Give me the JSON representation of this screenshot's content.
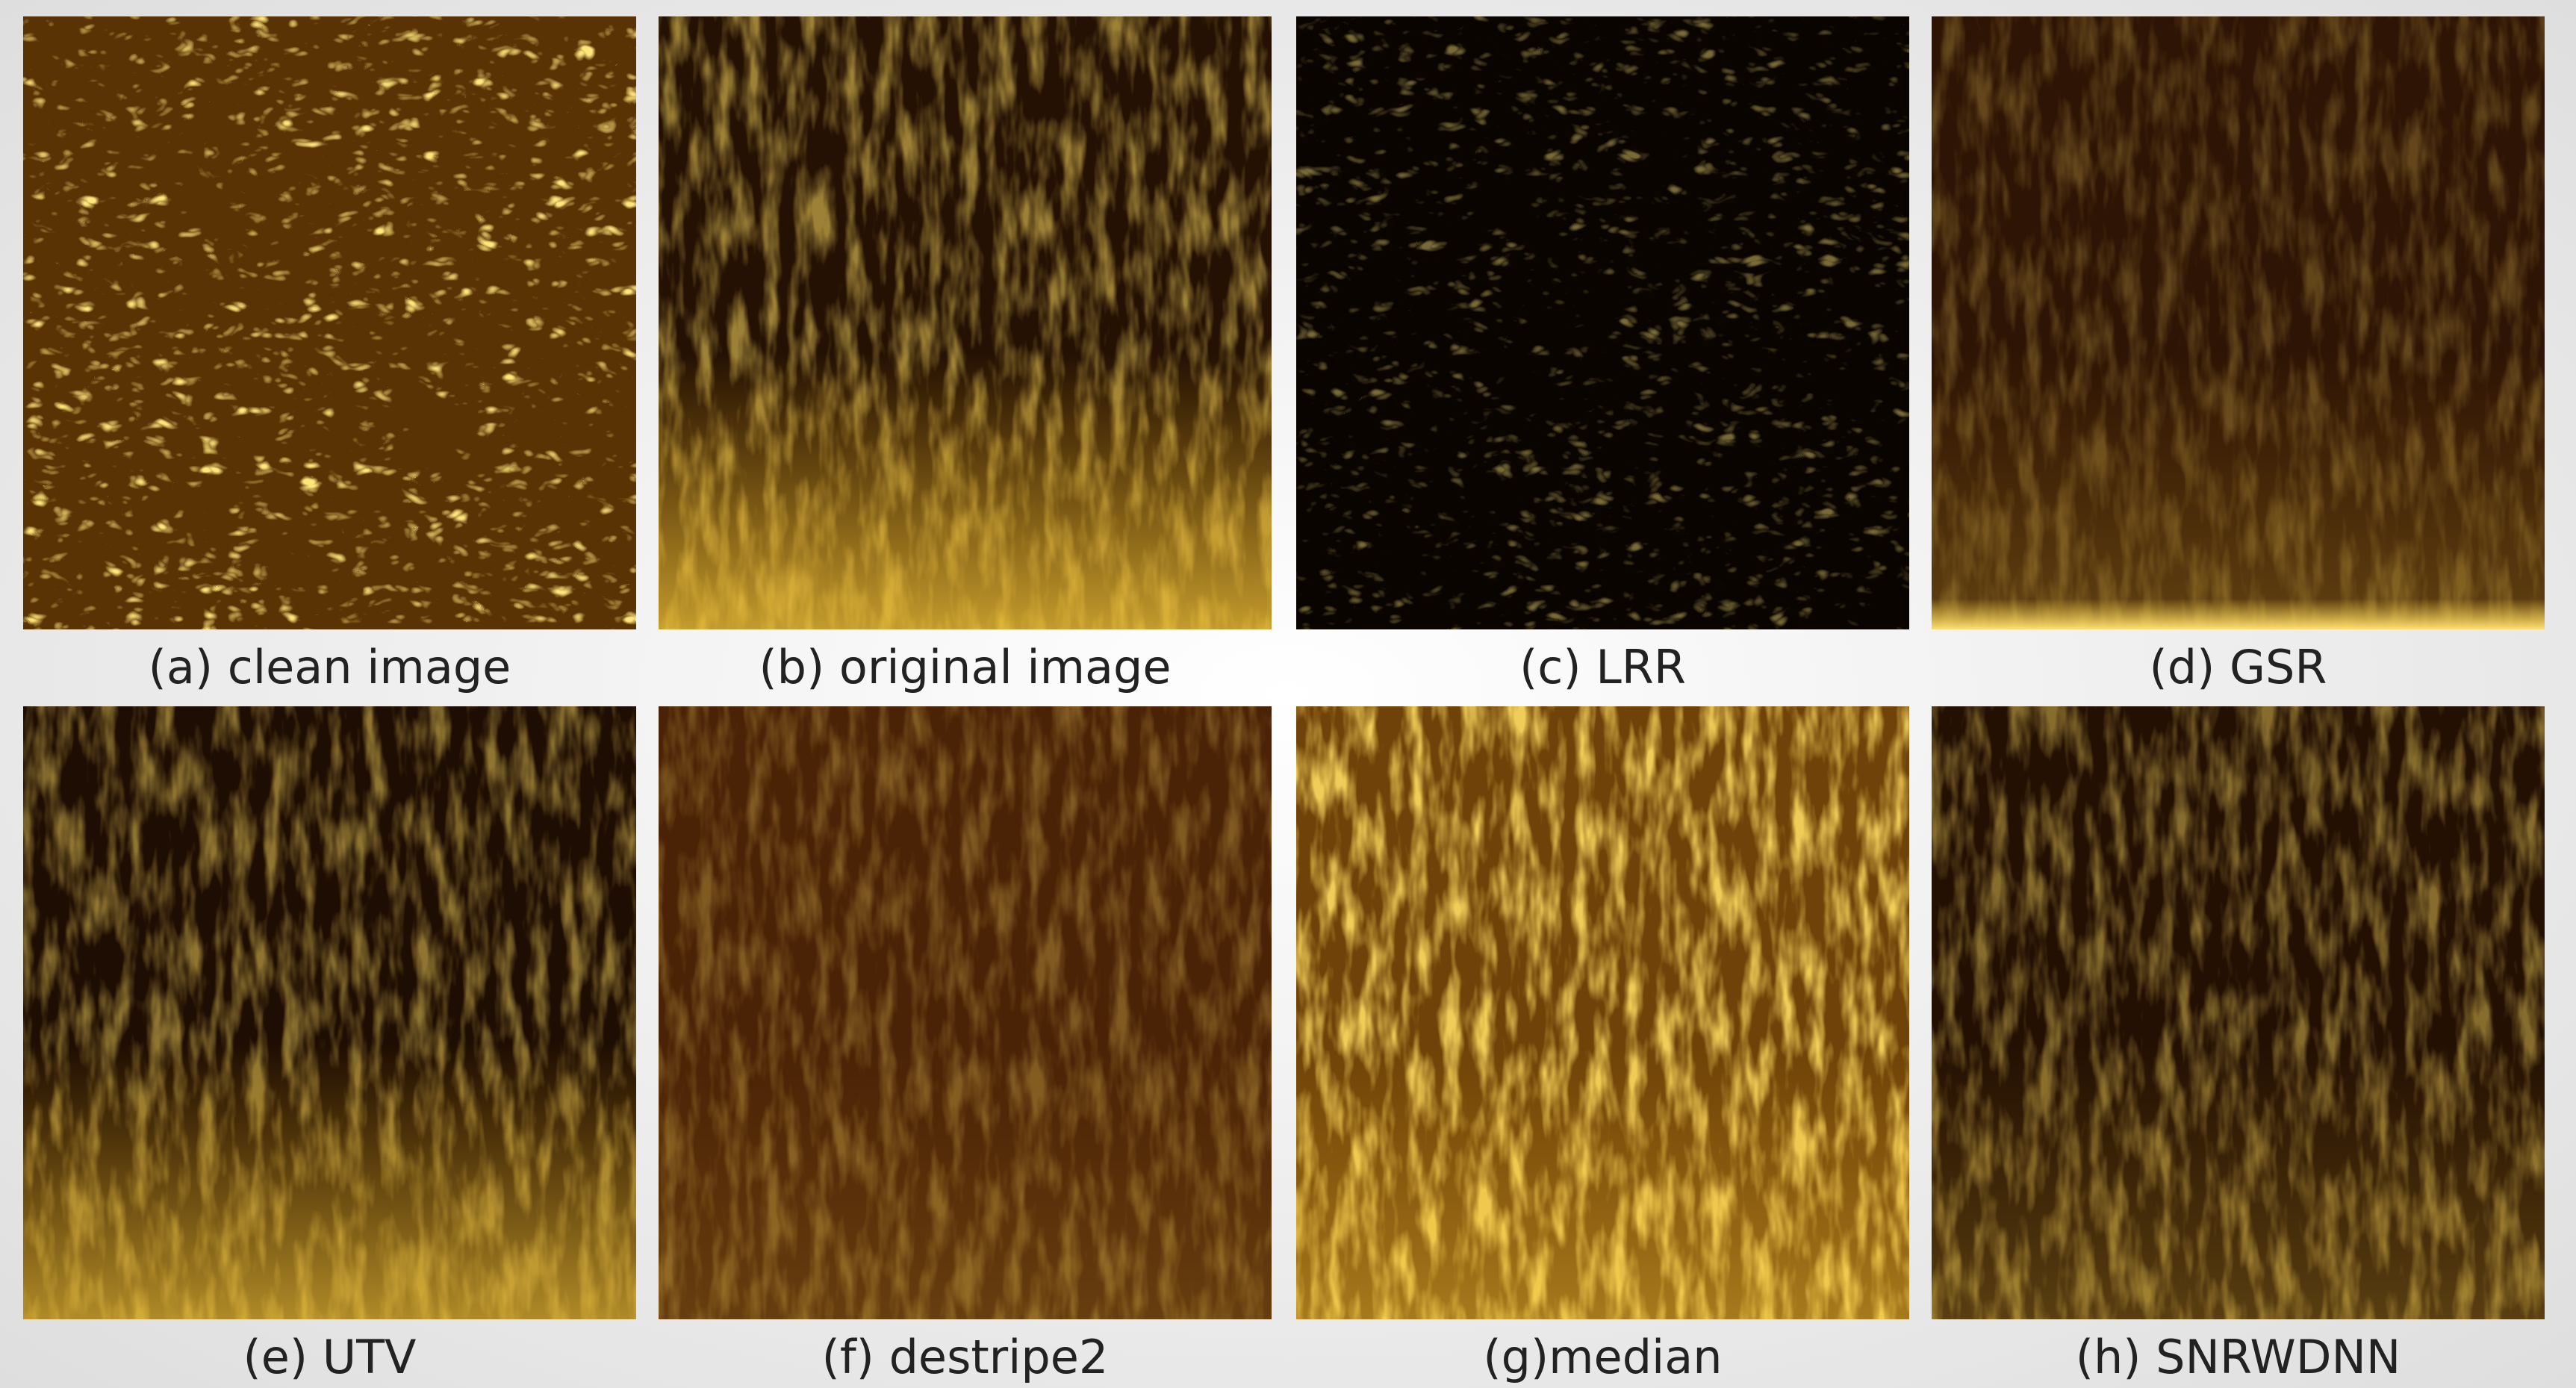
{
  "panels": [
    {
      "label": "(a) clean image"
    },
    {
      "label": "(b) original image"
    },
    {
      "label": "(c) LRR"
    },
    {
      "label": "(d) GSR"
    },
    {
      "label": "(e) UTV"
    },
    {
      "label": "(f) destripe2"
    },
    {
      "label": "(g)median"
    },
    {
      "label": "(h) SNRWDNN"
    }
  ]
}
